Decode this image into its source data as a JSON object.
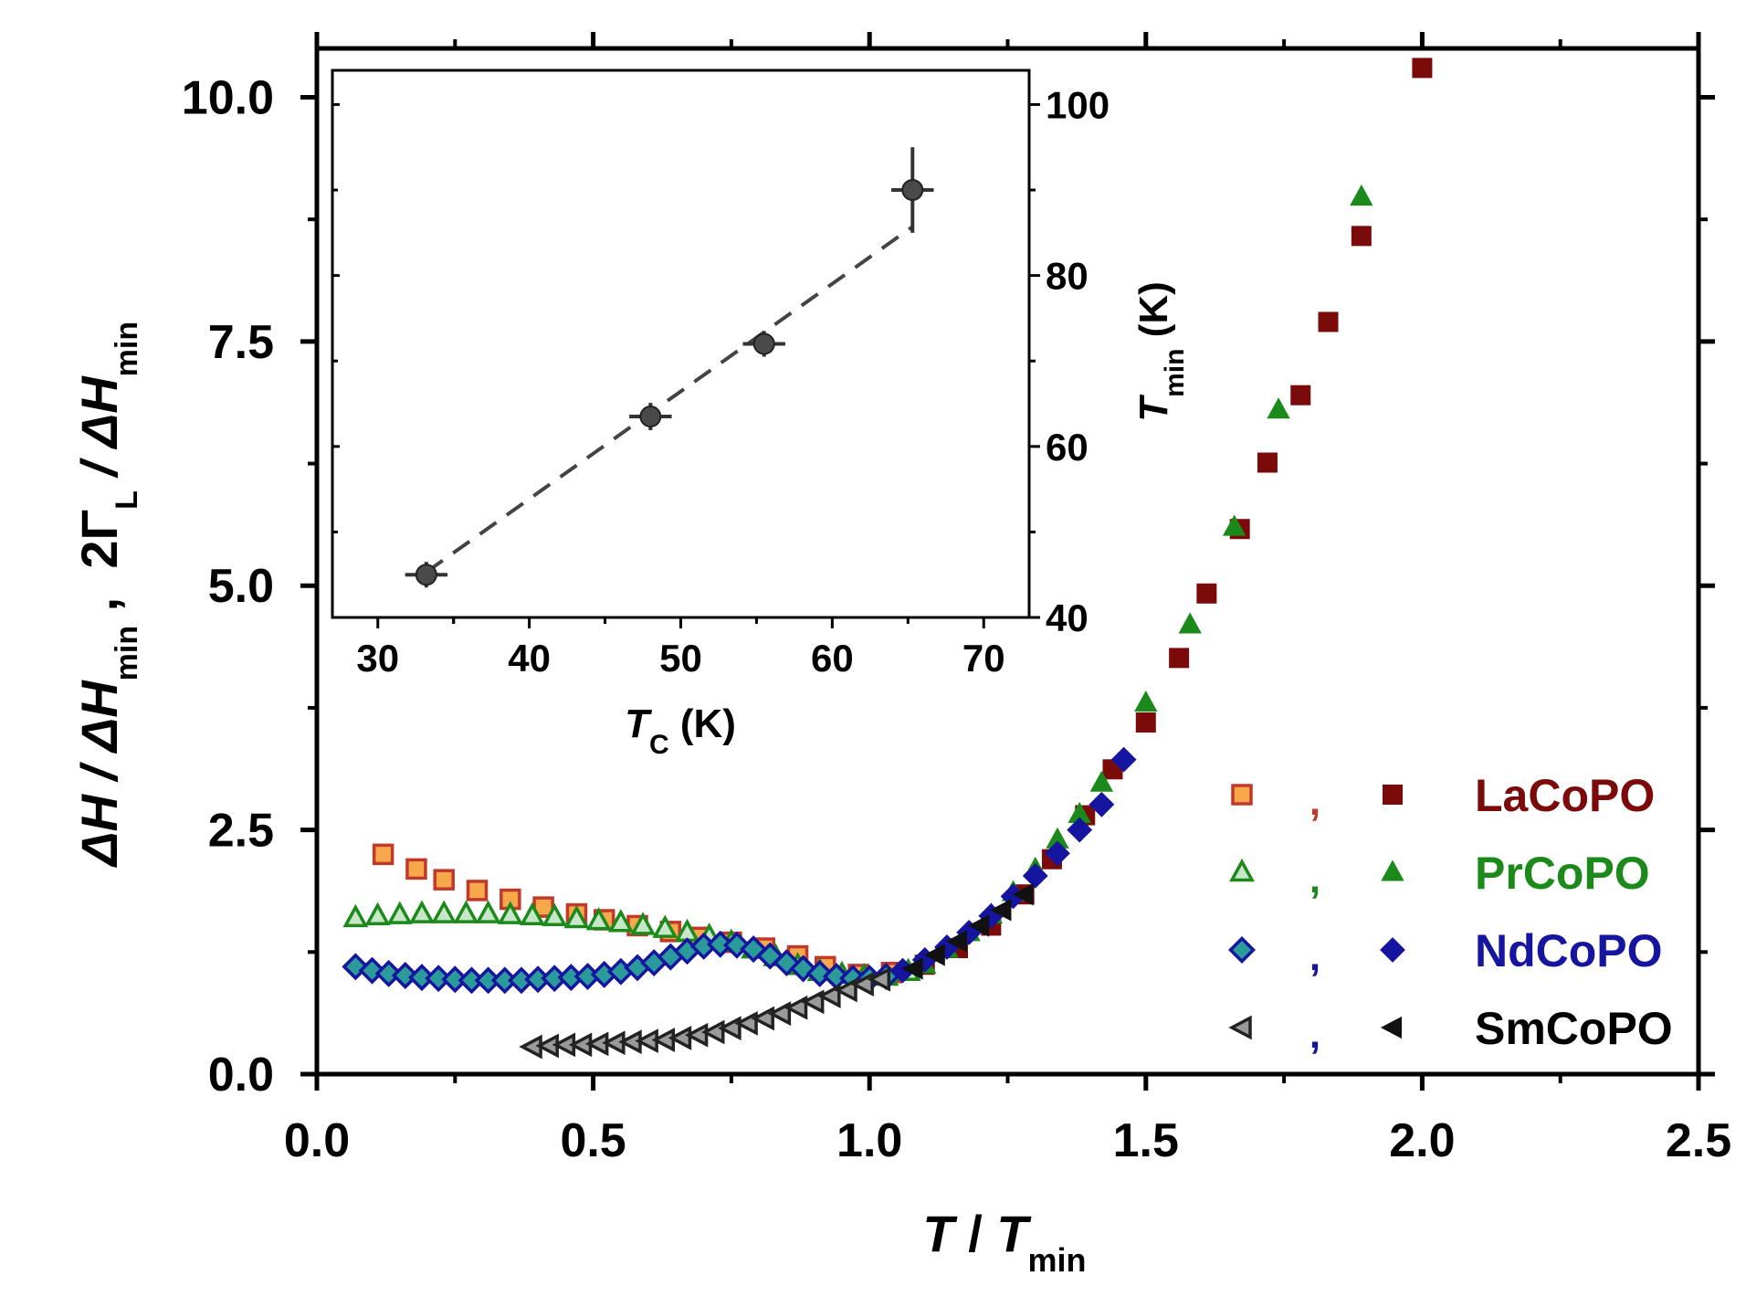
{
  "chart_data": [
    {
      "type": "scatter",
      "role": "main",
      "xlabel": {
        "main": "T",
        "sep": " / ",
        "sym": "T",
        "sub": "min"
      },
      "ylabel": {
        "p1": "ΔH / ΔH",
        "sub1": "min",
        "p2": " ,  2Γ",
        "sub2": "L",
        "p3": " / ΔH",
        "sub3": "min"
      },
      "xlim": [
        0,
        2.5
      ],
      "ylim": [
        0,
        10.5
      ],
      "xticks": [
        0,
        0.5,
        1.0,
        1.5,
        2.0,
        2.5
      ],
      "xtick_labels": [
        "0.0",
        "0.5",
        "1.0",
        "1.5",
        "2.0",
        "2.5"
      ],
      "yticks": [
        0,
        2.5,
        5.0,
        7.5,
        10.0
      ],
      "ytick_labels": [
        "0.0",
        "2.5",
        "5.0",
        "7.5",
        "10.0"
      ],
      "legend": {
        "position": "bottom-right",
        "separator": ",",
        "entries": [
          {
            "label": "LaCoPO",
            "color": "#7b0b0b",
            "separator_color": "#c0392b"
          },
          {
            "label": "PrCoPO",
            "color": "#1b8a1b",
            "separator_color": "#1b8a1b"
          },
          {
            "label": "NdCoPO",
            "color": "#1515a0",
            "separator_color": "#1515a0"
          },
          {
            "label": "SmCoPO",
            "color": "#000000",
            "separator_color": "#1515a0"
          }
        ]
      },
      "series": [
        {
          "name": "LaCoPO (open)",
          "marker": "square-open",
          "fill": "#f7a84a",
          "stroke": "#c0392b",
          "x": [
            0.12,
            0.18,
            0.23,
            0.29,
            0.35,
            0.41,
            0.47,
            0.52,
            0.58,
            0.64,
            0.69,
            0.75,
            0.81,
            0.87,
            0.92,
            0.98,
            1.04
          ],
          "y": [
            2.25,
            2.1,
            1.99,
            1.88,
            1.79,
            1.71,
            1.64,
            1.58,
            1.52,
            1.46,
            1.4,
            1.35,
            1.29,
            1.21,
            1.1,
            1.02,
            1.04
          ]
        },
        {
          "name": "LaCoPO (filled)",
          "marker": "square-filled",
          "fill": "#7b0b0b",
          "stroke": "#7b0b0b",
          "x": [
            1.1,
            1.16,
            1.22,
            1.28,
            1.33,
            1.39,
            1.44,
            1.5,
            1.56,
            1.61,
            1.67,
            1.72,
            1.78,
            1.83,
            1.89,
            2.0
          ],
          "y": [
            1.12,
            1.29,
            1.52,
            1.84,
            2.2,
            2.65,
            3.12,
            3.6,
            4.26,
            4.92,
            5.58,
            6.26,
            6.95,
            7.7,
            8.58,
            10.3
          ]
        },
        {
          "name": "PrCoPO (open)",
          "marker": "triangle-open",
          "fill": "#c8e6c8",
          "stroke": "#1b8a1b",
          "x": [
            0.07,
            0.11,
            0.15,
            0.19,
            0.23,
            0.27,
            0.31,
            0.35,
            0.39,
            0.43,
            0.47,
            0.51,
            0.55,
            0.59,
            0.63,
            0.67,
            0.71,
            0.75,
            0.79,
            0.83,
            0.87,
            0.91,
            0.95,
            0.99,
            1.03,
            1.07
          ],
          "y": [
            1.6,
            1.62,
            1.63,
            1.64,
            1.64,
            1.64,
            1.64,
            1.63,
            1.62,
            1.61,
            1.59,
            1.57,
            1.55,
            1.52,
            1.49,
            1.45,
            1.41,
            1.35,
            1.28,
            1.2,
            1.11,
            1.05,
            1.02,
            1.0,
            1.0,
            1.05
          ]
        },
        {
          "name": "PrCoPO (filled)",
          "marker": "triangle-filled",
          "fill": "#1b8a1b",
          "stroke": "#1b8a1b",
          "x": [
            1.1,
            1.14,
            1.18,
            1.22,
            1.26,
            1.3,
            1.34,
            1.38,
            1.42,
            1.5,
            1.58,
            1.66,
            1.74,
            1.89
          ],
          "y": [
            1.12,
            1.28,
            1.45,
            1.63,
            1.86,
            2.1,
            2.4,
            2.66,
            2.98,
            3.8,
            4.6,
            5.6,
            6.8,
            8.98
          ]
        },
        {
          "name": "NdCoPO (open)",
          "marker": "diamond-open",
          "fill": "#2b9a9a",
          "stroke": "#1515a0",
          "x": [
            0.07,
            0.1,
            0.13,
            0.16,
            0.19,
            0.22,
            0.25,
            0.28,
            0.31,
            0.34,
            0.37,
            0.4,
            0.43,
            0.46,
            0.49,
            0.52,
            0.55,
            0.58,
            0.61,
            0.64,
            0.67,
            0.7,
            0.73,
            0.76,
            0.79,
            0.82,
            0.85,
            0.88,
            0.91,
            0.94,
            0.97,
            1.0,
            1.03
          ],
          "y": [
            1.1,
            1.06,
            1.03,
            1.01,
            0.99,
            0.98,
            0.97,
            0.96,
            0.96,
            0.96,
            0.96,
            0.97,
            0.98,
            0.99,
            1.0,
            1.02,
            1.05,
            1.09,
            1.14,
            1.2,
            1.26,
            1.31,
            1.33,
            1.32,
            1.28,
            1.21,
            1.14,
            1.08,
            1.03,
            1.0,
            0.98,
            0.98,
            1.0
          ]
        },
        {
          "name": "NdCoPO (filled)",
          "marker": "diamond-filled",
          "fill": "#1515a0",
          "stroke": "#1515a0",
          "x": [
            1.06,
            1.1,
            1.14,
            1.18,
            1.22,
            1.26,
            1.3,
            1.34,
            1.38,
            1.42,
            1.46
          ],
          "y": [
            1.06,
            1.17,
            1.3,
            1.45,
            1.62,
            1.82,
            2.03,
            2.26,
            2.5,
            2.76,
            3.22
          ]
        },
        {
          "name": "SmCoPO (open)",
          "marker": "lefttriangle-open",
          "fill": "#9a9a9a",
          "stroke": "#222222",
          "x": [
            0.39,
            0.42,
            0.45,
            0.48,
            0.51,
            0.54,
            0.57,
            0.6,
            0.63,
            0.66,
            0.69,
            0.72,
            0.75,
            0.78,
            0.81,
            0.84,
            0.87,
            0.9,
            0.93,
            0.96,
            0.99,
            1.02
          ],
          "y": [
            0.28,
            0.29,
            0.3,
            0.3,
            0.31,
            0.32,
            0.33,
            0.34,
            0.35,
            0.37,
            0.4,
            0.43,
            0.47,
            0.52,
            0.57,
            0.62,
            0.68,
            0.74,
            0.8,
            0.86,
            0.92,
            0.97
          ]
        },
        {
          "name": "SmCoPO (filled)",
          "marker": "lefttriangle-filled",
          "fill": "#111111",
          "stroke": "#111111",
          "x": [
            1.08,
            1.12,
            1.16,
            1.2,
            1.24,
            1.28
          ],
          "y": [
            1.08,
            1.22,
            1.36,
            1.52,
            1.68,
            1.84
          ]
        }
      ]
    },
    {
      "type": "scatter",
      "role": "inset",
      "xlabel": {
        "sym": "T",
        "sub": "C",
        "unit": " (K)"
      },
      "ylabel": {
        "sym": "T",
        "sub": "min",
        "unit": " (K)"
      },
      "y_axis_side": "right",
      "xlim": [
        27,
        73
      ],
      "ylim": [
        40,
        104
      ],
      "xticks": [
        30,
        40,
        50,
        60,
        70
      ],
      "xtick_labels": [
        "30",
        "40",
        "50",
        "60",
        "70"
      ],
      "yticks": [
        40,
        60,
        80,
        100
      ],
      "ytick_labels": [
        "40",
        "60",
        "80",
        "100"
      ],
      "points": [
        {
          "x": 33.2,
          "y": 45.0,
          "xerr": 1.0,
          "yerr": 1.5
        },
        {
          "x": 48.0,
          "y": 63.5,
          "xerr": 1.0,
          "yerr": 1.6
        },
        {
          "x": 55.5,
          "y": 72.0,
          "xerr": 1.0,
          "yerr": 1.5
        },
        {
          "x": 65.3,
          "y": 90.0,
          "xerr": 1.0,
          "yerr": 5.0
        }
      ],
      "fit_line": {
        "x": [
          33.2,
          65.3
        ],
        "y": [
          45.3,
          85.7
        ],
        "style": "dashed"
      },
      "marker_color": "#4a4a4a"
    }
  ]
}
